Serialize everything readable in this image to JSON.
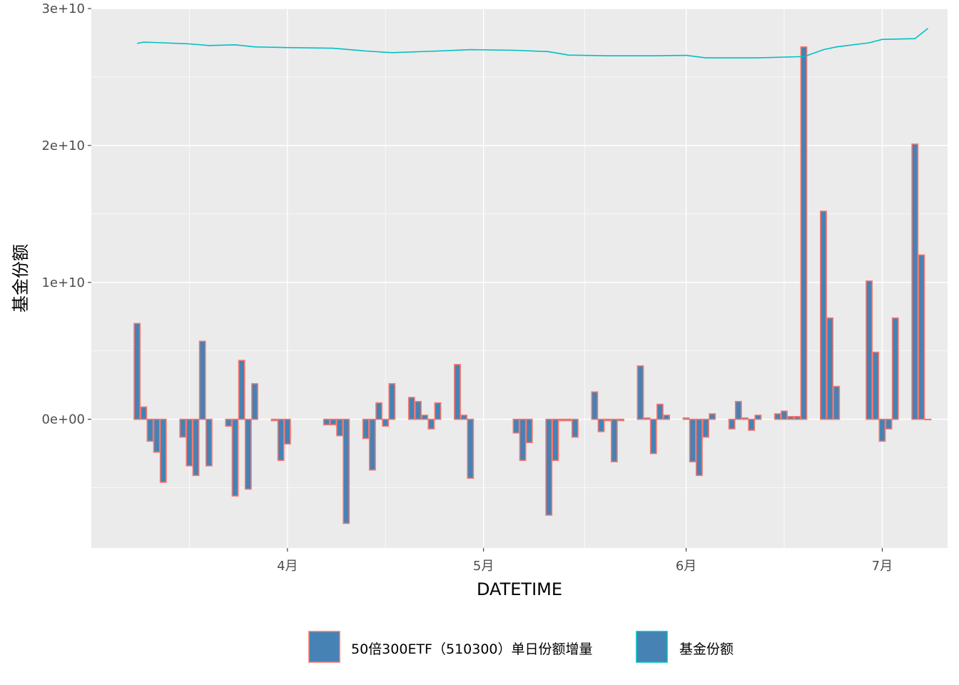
{
  "chart_data": {
    "type": "bar",
    "title": "",
    "xlabel": "DATETIME",
    "ylabel": "基金份额",
    "ylim": [
      -9400000000,
      30000000000
    ],
    "y_ticks": [
      {
        "value": 0,
        "label": "0e+00"
      },
      {
        "value": 10000000000,
        "label": "1e+10"
      },
      {
        "value": 20000000000,
        "label": "2e+10"
      },
      {
        "value": 30000000000,
        "label": "3e+10"
      }
    ],
    "x_ticks": [
      {
        "date": "2020-04-01",
        "label": "4月"
      },
      {
        "date": "2020-05-01",
        "label": "5月"
      },
      {
        "date": "2020-06-01",
        "label": "6月"
      },
      {
        "date": "2020-07-01",
        "label": "7月"
      }
    ],
    "xlim": [
      "2020-03-02",
      "2020-07-11"
    ],
    "grid": true,
    "legend_position": "bottom",
    "series": [
      {
        "name": "50倍300ETF（510300）单日份额增量",
        "kind": "bar",
        "fill": "#4682b4",
        "stroke": "#f8766d",
        "points": [
          {
            "date": "2020-03-09",
            "value": 7000000000
          },
          {
            "date": "2020-03-10",
            "value": 900000000
          },
          {
            "date": "2020-03-11",
            "value": -1600000000
          },
          {
            "date": "2020-03-12",
            "value": -2400000000
          },
          {
            "date": "2020-03-13",
            "value": -4600000000
          },
          {
            "date": "2020-03-16",
            "value": -1300000000
          },
          {
            "date": "2020-03-17",
            "value": -3400000000
          },
          {
            "date": "2020-03-18",
            "value": -4100000000
          },
          {
            "date": "2020-03-19",
            "value": 5700000000
          },
          {
            "date": "2020-03-20",
            "value": -3400000000
          },
          {
            "date": "2020-03-23",
            "value": -500000000
          },
          {
            "date": "2020-03-24",
            "value": -5600000000
          },
          {
            "date": "2020-03-25",
            "value": 4300000000
          },
          {
            "date": "2020-03-26",
            "value": -5100000000
          },
          {
            "date": "2020-03-27",
            "value": 2600000000
          },
          {
            "date": "2020-03-30",
            "value": -100000000
          },
          {
            "date": "2020-03-31",
            "value": -3000000000
          },
          {
            "date": "2020-04-01",
            "value": -1800000000
          },
          {
            "date": "2020-04-07",
            "value": -400000000
          },
          {
            "date": "2020-04-08",
            "value": -400000000
          },
          {
            "date": "2020-04-09",
            "value": -1200000000
          },
          {
            "date": "2020-04-10",
            "value": -7600000000
          },
          {
            "date": "2020-04-13",
            "value": -1400000000
          },
          {
            "date": "2020-04-14",
            "value": -3700000000
          },
          {
            "date": "2020-04-15",
            "value": 1200000000
          },
          {
            "date": "2020-04-16",
            "value": -500000000
          },
          {
            "date": "2020-04-17",
            "value": 2600000000
          },
          {
            "date": "2020-04-20",
            "value": 1600000000
          },
          {
            "date": "2020-04-21",
            "value": 1300000000
          },
          {
            "date": "2020-04-22",
            "value": 300000000
          },
          {
            "date": "2020-04-23",
            "value": -700000000
          },
          {
            "date": "2020-04-24",
            "value": 1200000000
          },
          {
            "date": "2020-04-27",
            "value": 4000000000
          },
          {
            "date": "2020-04-28",
            "value": 300000000
          },
          {
            "date": "2020-04-29",
            "value": -4300000000
          },
          {
            "date": "2020-05-06",
            "value": -1000000000
          },
          {
            "date": "2020-05-07",
            "value": -3000000000
          },
          {
            "date": "2020-05-08",
            "value": -1700000000
          },
          {
            "date": "2020-05-11",
            "value": -7000000000
          },
          {
            "date": "2020-05-12",
            "value": -3000000000
          },
          {
            "date": "2020-05-13",
            "value": -100000000
          },
          {
            "date": "2020-05-14",
            "value": -100000000
          },
          {
            "date": "2020-05-15",
            "value": -1300000000
          },
          {
            "date": "2020-05-18",
            "value": 2000000000
          },
          {
            "date": "2020-05-19",
            "value": -900000000
          },
          {
            "date": "2020-05-20",
            "value": -100000000
          },
          {
            "date": "2020-05-21",
            "value": -3100000000
          },
          {
            "date": "2020-05-22",
            "value": -100000000
          },
          {
            "date": "2020-05-25",
            "value": 3900000000
          },
          {
            "date": "2020-05-26",
            "value": 100000000
          },
          {
            "date": "2020-05-27",
            "value": -2500000000
          },
          {
            "date": "2020-05-28",
            "value": 1100000000
          },
          {
            "date": "2020-05-29",
            "value": 300000000
          },
          {
            "date": "2020-06-01",
            "value": 100000000
          },
          {
            "date": "2020-06-02",
            "value": -3100000000
          },
          {
            "date": "2020-06-03",
            "value": -4100000000
          },
          {
            "date": "2020-06-04",
            "value": -1300000000
          },
          {
            "date": "2020-06-05",
            "value": 400000000
          },
          {
            "date": "2020-06-08",
            "value": -700000000
          },
          {
            "date": "2020-06-09",
            "value": 1300000000
          },
          {
            "date": "2020-06-10",
            "value": 100000000
          },
          {
            "date": "2020-06-11",
            "value": -800000000
          },
          {
            "date": "2020-06-12",
            "value": 300000000
          },
          {
            "date": "2020-06-15",
            "value": 400000000
          },
          {
            "date": "2020-06-16",
            "value": 600000000
          },
          {
            "date": "2020-06-17",
            "value": 200000000
          },
          {
            "date": "2020-06-18",
            "value": 200000000
          },
          {
            "date": "2020-06-19",
            "value": 27200000000
          },
          {
            "date": "2020-06-22",
            "value": 15200000000
          },
          {
            "date": "2020-06-23",
            "value": 7400000000
          },
          {
            "date": "2020-06-24",
            "value": 2400000000
          },
          {
            "date": "2020-06-29",
            "value": 10100000000
          },
          {
            "date": "2020-06-30",
            "value": 4900000000
          },
          {
            "date": "2020-07-01",
            "value": -1600000000
          },
          {
            "date": "2020-07-02",
            "value": -700000000
          },
          {
            "date": "2020-07-03",
            "value": 7400000000
          },
          {
            "date": "2020-07-06",
            "value": 20100000000
          },
          {
            "date": "2020-07-07",
            "value": 12000000000
          },
          {
            "date": "2020-07-08",
            "value": 0
          }
        ]
      },
      {
        "name": "基金份额",
        "kind": "line",
        "stroke": "#00bfc4",
        "points": [
          {
            "date": "2020-03-09",
            "value": 27450000000
          },
          {
            "date": "2020-03-10",
            "value": 27550000000
          },
          {
            "date": "2020-03-13",
            "value": 27500000000
          },
          {
            "date": "2020-03-17",
            "value": 27420000000
          },
          {
            "date": "2020-03-20",
            "value": 27300000000
          },
          {
            "date": "2020-03-24",
            "value": 27350000000
          },
          {
            "date": "2020-03-27",
            "value": 27200000000
          },
          {
            "date": "2020-04-01",
            "value": 27150000000
          },
          {
            "date": "2020-04-08",
            "value": 27100000000
          },
          {
            "date": "2020-04-13",
            "value": 26900000000
          },
          {
            "date": "2020-04-17",
            "value": 26780000000
          },
          {
            "date": "2020-04-24",
            "value": 26900000000
          },
          {
            "date": "2020-04-29",
            "value": 27000000000
          },
          {
            "date": "2020-05-06",
            "value": 26950000000
          },
          {
            "date": "2020-05-11",
            "value": 26850000000
          },
          {
            "date": "2020-05-14",
            "value": 26600000000
          },
          {
            "date": "2020-05-20",
            "value": 26550000000
          },
          {
            "date": "2020-05-27",
            "value": 26550000000
          },
          {
            "date": "2020-06-01",
            "value": 26580000000
          },
          {
            "date": "2020-06-04",
            "value": 26400000000
          },
          {
            "date": "2020-06-12",
            "value": 26400000000
          },
          {
            "date": "2020-06-18",
            "value": 26480000000
          },
          {
            "date": "2020-06-19",
            "value": 26480000000
          },
          {
            "date": "2020-06-22",
            "value": 27000000000
          },
          {
            "date": "2020-06-24",
            "value": 27200000000
          },
          {
            "date": "2020-06-29",
            "value": 27500000000
          },
          {
            "date": "2020-07-01",
            "value": 27750000000
          },
          {
            "date": "2020-07-06",
            "value": 27800000000
          },
          {
            "date": "2020-07-08",
            "value": 28550000000
          }
        ]
      }
    ]
  }
}
